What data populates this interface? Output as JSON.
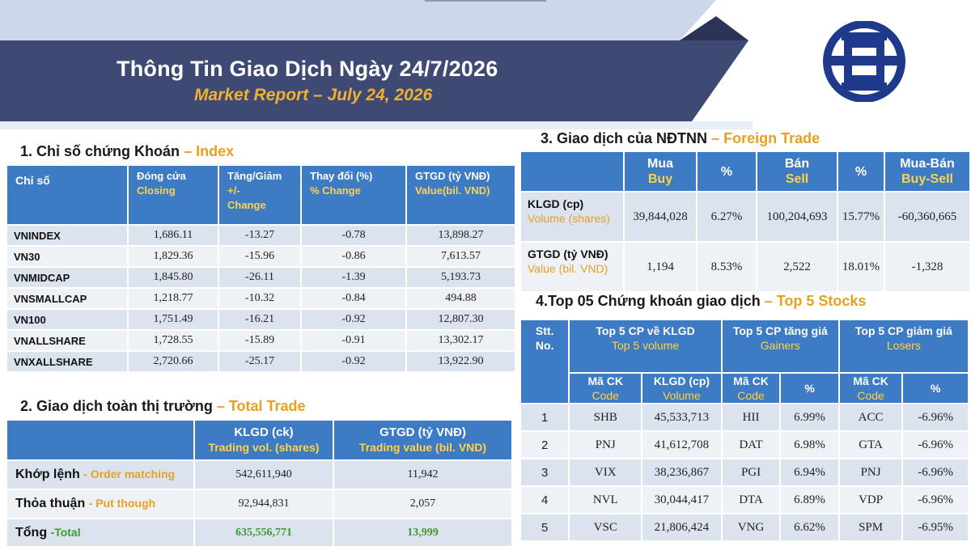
{
  "header": {
    "title": "Thông Tin Giao Dịch Ngày 24/7/2026",
    "subtitle": "Market Report – July 24, 2026"
  },
  "colors": {
    "navy": "#3f4a74",
    "accent": "#e8a020",
    "table_header": "#3d7cc4",
    "green": "#3d9a2e"
  },
  "index_section": {
    "heading_vi": "1. Chỉ số chứng Khoán",
    "heading_en": "– Index",
    "columns": [
      {
        "vi": "Chỉ số",
        "en": ""
      },
      {
        "vi": "Đóng cửa",
        "en": "Closing"
      },
      {
        "vi": "Tăng/Giảm",
        "en": "+/- Change"
      },
      {
        "vi": "Thay đổi (%)",
        "en": "% Change"
      },
      {
        "vi": "GTGD (tỷ VNĐ)",
        "en": "Value(bil. VND)"
      }
    ],
    "rows": [
      {
        "name": "VNINDEX",
        "closing": "1,686.11",
        "change": "-13.27",
        "pct": "-0.78",
        "value": "13,898.27"
      },
      {
        "name": "VN30",
        "closing": "1,829.36",
        "change": "-15.96",
        "pct": "-0.86",
        "value": "7,613.57"
      },
      {
        "name": "VNMIDCAP",
        "closing": "1,845.80",
        "change": "-26.11",
        "pct": "-1.39",
        "value": "5,193.73"
      },
      {
        "name": "VNSMALLCAP",
        "closing": "1,218.77",
        "change": "-10.32",
        "pct": "-0.84",
        "value": "494.88"
      },
      {
        "name": "VN100",
        "closing": "1,751.49",
        "change": "-16.21",
        "pct": "-0.92",
        "value": "12,807.30"
      },
      {
        "name": "VNALLSHARE",
        "closing": "1,728.55",
        "change": "-15.89",
        "pct": "-0.91",
        "value": "13,302.17"
      },
      {
        "name": "VNXALLSHARE",
        "closing": "2,720.66",
        "change": "-25.17",
        "pct": "-0.92",
        "value": "13,922.90"
      }
    ]
  },
  "total_section": {
    "heading_vi": "2. Giao dịch toàn thị trường",
    "heading_en": "– Total Trade",
    "columns": [
      {
        "vi": "KLGD (ck)",
        "en": "Trading vol. (shares)"
      },
      {
        "vi": "GTGD (tỷ VNĐ)",
        "en": "Trading value (bil. VND)"
      }
    ],
    "rows": [
      {
        "label_vi": "Khớp lệnh",
        "label_en": "- Order matching",
        "volume": "542,611,940",
        "value": "11,942"
      },
      {
        "label_vi": "Thỏa thuận",
        "label_en": "- Put though",
        "volume": "92,944,831",
        "value": "2,057"
      },
      {
        "label_vi": "Tổng",
        "label_en": "-Total",
        "volume": "635,556,771",
        "value": "13,999"
      }
    ]
  },
  "foreign_section": {
    "heading_vi": "3. Giao dịch của NĐTNN",
    "heading_en": "– Foreign Trade",
    "columns": [
      {
        "vi": "Mua",
        "en": "Buy"
      },
      {
        "vi": "%",
        "en": ""
      },
      {
        "vi": "Bán",
        "en": "Sell"
      },
      {
        "vi": "%",
        "en": ""
      },
      {
        "vi": "Mua-Bán",
        "en": "Buy-Sell"
      }
    ],
    "rows": [
      {
        "label_vi": "KLGD (cp)",
        "label_en": "Volume (shares)",
        "buy": "39,844,028",
        "buy_pct": "6.27%",
        "sell": "100,204,693",
        "sell_pct": "15.77%",
        "net": "-60,360,665"
      },
      {
        "label_vi": "GTGD (tỷ VNĐ)",
        "label_en": "Value (bil. VND)",
        "buy": "1,194",
        "buy_pct": "8.53%",
        "sell": "2,522",
        "sell_pct": "18.01%",
        "net": "-1,328"
      }
    ]
  },
  "top5_section": {
    "heading_vi": "4.Top 05 Chứng khoán giao dịch",
    "heading_en": "– Top 5 Stocks",
    "stt": {
      "vi": "Stt.",
      "en": "No."
    },
    "groups": [
      {
        "vi": "Top 5 CP về KLGD",
        "en": "Top 5 volume"
      },
      {
        "vi": "Top 5 CP tăng giá",
        "en": "Gainers"
      },
      {
        "vi": "Top 5 CP giảm giá",
        "en": "Losers"
      }
    ],
    "subcols": {
      "code_vi": "Mã CK",
      "code_en": "Code",
      "vol_vi": "KLGD (cp)",
      "vol_en": "Volume",
      "pct": "%"
    },
    "rows": [
      {
        "no": "1",
        "vol_code": "SHB",
        "vol": "45,533,713",
        "gain_code": "HII",
        "gain_pct": "6.99%",
        "lose_code": "ACC",
        "lose_pct": "-6.96%"
      },
      {
        "no": "2",
        "vol_code": "PNJ",
        "vol": "41,612,708",
        "gain_code": "DAT",
        "gain_pct": "6.98%",
        "lose_code": "GTA",
        "lose_pct": "-6.96%"
      },
      {
        "no": "3",
        "vol_code": "VIX",
        "vol": "38,236,867",
        "gain_code": "PGI",
        "gain_pct": "6.94%",
        "lose_code": "PNJ",
        "lose_pct": "-6.96%"
      },
      {
        "no": "4",
        "vol_code": "NVL",
        "vol": "30,044,417",
        "gain_code": "DTA",
        "gain_pct": "6.89%",
        "lose_code": "VDP",
        "lose_pct": "-6.96%"
      },
      {
        "no": "5",
        "vol_code": "VSC",
        "vol": "21,806,424",
        "gain_code": "VNG",
        "gain_pct": "6.62%",
        "lose_code": "SPM",
        "lose_pct": "-6.95%"
      }
    ]
  }
}
